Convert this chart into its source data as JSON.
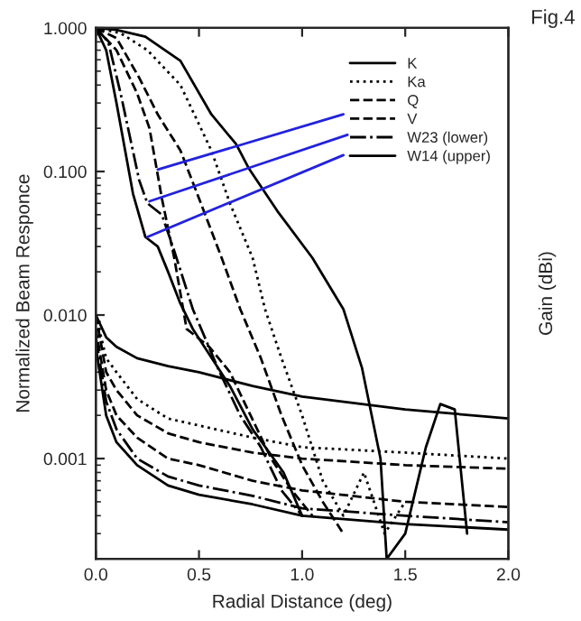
{
  "chart_data": {
    "type": "line",
    "xlabel": "Radial Distance (deg)",
    "ylabel": "Normalized Beam Responce",
    "y2label": "Gain (dBi)",
    "annotations": [
      "Fig.4"
    ],
    "log": "y",
    "xlim": [
      0.0,
      2.0
    ],
    "ylim": [
      0.0002,
      1.0
    ],
    "xticks": [
      {
        "value": 0.0,
        "label": "0.0"
      },
      {
        "value": 0.5,
        "label": "0.5"
      },
      {
        "value": 1.0,
        "label": "1.0"
      },
      {
        "value": 1.5,
        "label": "1.5"
      },
      {
        "value": 2.0,
        "label": "2.0"
      }
    ],
    "yticks": [
      {
        "value": 1.0,
        "label": "1.000"
      },
      {
        "value": 0.1,
        "label": "0.100"
      },
      {
        "value": 0.01,
        "label": "0.010"
      },
      {
        "value": 0.001,
        "label": "0.001"
      }
    ],
    "grid": false,
    "legend": "top right",
    "marker": "none",
    "series": [
      {
        "name": "K",
        "color": "#000000",
        "line_style": "solid",
        "x": [
          0,
          0.1,
          0.24,
          0.41,
          0.56,
          0.68,
          0.74,
          0.88,
          1.05,
          1.2,
          1.29,
          1.38,
          1.41,
          1.5,
          1.6,
          1.67,
          1.74,
          1.8
        ],
        "values": [
          1.0,
          0.97,
          0.87,
          0.59,
          0.25,
          0.155,
          0.106,
          0.053,
          0.025,
          0.011,
          0.0043,
          0.001,
          0.0002,
          0.0003,
          0.0012,
          0.0024,
          0.0022,
          0.0003
        ]
      },
      {
        "name": "Ka",
        "color": "#000000",
        "line_style": "dotted",
        "x": [
          0,
          0.12,
          0.25,
          0.41,
          0.56,
          0.65,
          0.76,
          0.82,
          0.9,
          1.0,
          1.1,
          1.2,
          1.3,
          1.4,
          1.5
        ],
        "values": [
          1.0,
          0.92,
          0.7,
          0.4,
          0.14,
          0.06,
          0.025,
          0.011,
          0.005,
          0.002,
          0.0007,
          0.0004,
          0.0008,
          0.0003,
          0.0005
        ]
      },
      {
        "name": "Q",
        "color": "#000000",
        "line_style": "dashed",
        "x": [
          0,
          0.1,
          0.21,
          0.3,
          0.41,
          0.5,
          0.61,
          0.7,
          0.8,
          0.9,
          1.0,
          1.1,
          1.2
        ],
        "values": [
          1.0,
          0.85,
          0.45,
          0.25,
          0.14,
          0.065,
          0.025,
          0.011,
          0.005,
          0.002,
          0.0009,
          0.0005,
          0.0003
        ]
      },
      {
        "name": "V",
        "color": "#000000",
        "line_style": "dashed",
        "x": [
          0,
          0.1,
          0.2,
          0.26,
          0.32,
          0.38,
          0.44,
          0.55,
          0.65,
          0.75,
          0.85,
          0.95,
          1.05
        ],
        "values": [
          1.0,
          0.7,
          0.35,
          0.2,
          0.065,
          0.025,
          0.008,
          0.006,
          0.004,
          0.002,
          0.001,
          0.0006,
          0.0004
        ]
      },
      {
        "name": "W23 (lower)",
        "color": "#000000",
        "line_style": "dashdot",
        "x": [
          0,
          0.06,
          0.12,
          0.21,
          0.25,
          0.32,
          0.38,
          0.47,
          0.6,
          0.7,
          0.8,
          0.9,
          1.0
        ],
        "values": [
          1.0,
          0.8,
          0.35,
          0.087,
          0.06,
          0.05,
          0.028,
          0.011,
          0.004,
          0.002,
          0.0012,
          0.0006,
          0.0004
        ]
      },
      {
        "name": "W14 (upper)",
        "color": "#000000",
        "line_style": "solid",
        "x": [
          0,
          0.05,
          0.1,
          0.18,
          0.24,
          0.3,
          0.35,
          0.41,
          0.47,
          0.65,
          0.76,
          0.91,
          1.0
        ],
        "values": [
          1.0,
          0.7,
          0.3,
          0.07,
          0.035,
          0.03,
          0.02,
          0.012,
          0.008,
          0.0032,
          0.0016,
          0.0008,
          0.0004
        ]
      },
      {
        "color": "#000000",
        "line_style": "solid",
        "x": [
          0,
          0.05,
          0.1,
          0.2,
          0.35,
          0.5,
          0.76,
          1.0,
          1.5,
          2.0
        ],
        "values": [
          0.01,
          0.007,
          0.006,
          0.005,
          0.0044,
          0.004,
          0.0032,
          0.0027,
          0.0022,
          0.0019
        ]
      },
      {
        "color": "#000000",
        "line_style": "dotted",
        "x": [
          0,
          0.05,
          0.1,
          0.2,
          0.35,
          0.5,
          0.76,
          1.0,
          1.5,
          2.0
        ],
        "values": [
          0.01,
          0.005,
          0.004,
          0.0026,
          0.0019,
          0.0017,
          0.0014,
          0.0012,
          0.0011,
          0.001
        ]
      },
      {
        "color": "#000000",
        "line_style": "dashed",
        "x": [
          0,
          0.05,
          0.1,
          0.2,
          0.35,
          0.5,
          0.76,
          1.0,
          1.5,
          2.0
        ],
        "values": [
          0.01,
          0.004,
          0.003,
          0.002,
          0.0015,
          0.0013,
          0.0011,
          0.001,
          0.0009,
          0.00085
        ]
      },
      {
        "color": "#000000",
        "line_style": "dashed",
        "x": [
          0,
          0.05,
          0.1,
          0.2,
          0.35,
          0.5,
          0.76,
          1.0,
          1.5,
          2.0
        ],
        "values": [
          0.008,
          0.003,
          0.002,
          0.0014,
          0.001,
          0.0009,
          0.0007,
          0.0006,
          0.0005,
          0.00046
        ]
      },
      {
        "color": "#000000",
        "line_style": "dashdot",
        "x": [
          0,
          0.05,
          0.1,
          0.2,
          0.35,
          0.5,
          0.76,
          1.0,
          1.5,
          2.0
        ],
        "values": [
          0.007,
          0.0025,
          0.0016,
          0.001,
          0.00075,
          0.00065,
          0.00055,
          0.00045,
          0.0004,
          0.00036
        ]
      },
      {
        "color": "#000000",
        "line_style": "solid",
        "x": [
          0,
          0.05,
          0.1,
          0.2,
          0.35,
          0.5,
          0.76,
          1.0,
          1.5,
          2.0
        ],
        "values": [
          0.006,
          0.002,
          0.0013,
          0.0009,
          0.00065,
          0.00056,
          0.00048,
          0.0004,
          0.00035,
          0.00032
        ]
      },
      {
        "color": "#2222dd",
        "line_style": "solid",
        "x": [
          0.3,
          1.2
        ],
        "values": [
          0.103,
          0.25
        ]
      },
      {
        "color": "#2222dd",
        "line_style": "solid",
        "x": [
          0.26,
          1.22
        ],
        "values": [
          0.062,
          0.18
        ]
      },
      {
        "color": "#2222dd",
        "line_style": "solid",
        "x": [
          0.25,
          1.2
        ],
        "values": [
          0.035,
          0.13
        ]
      }
    ]
  }
}
